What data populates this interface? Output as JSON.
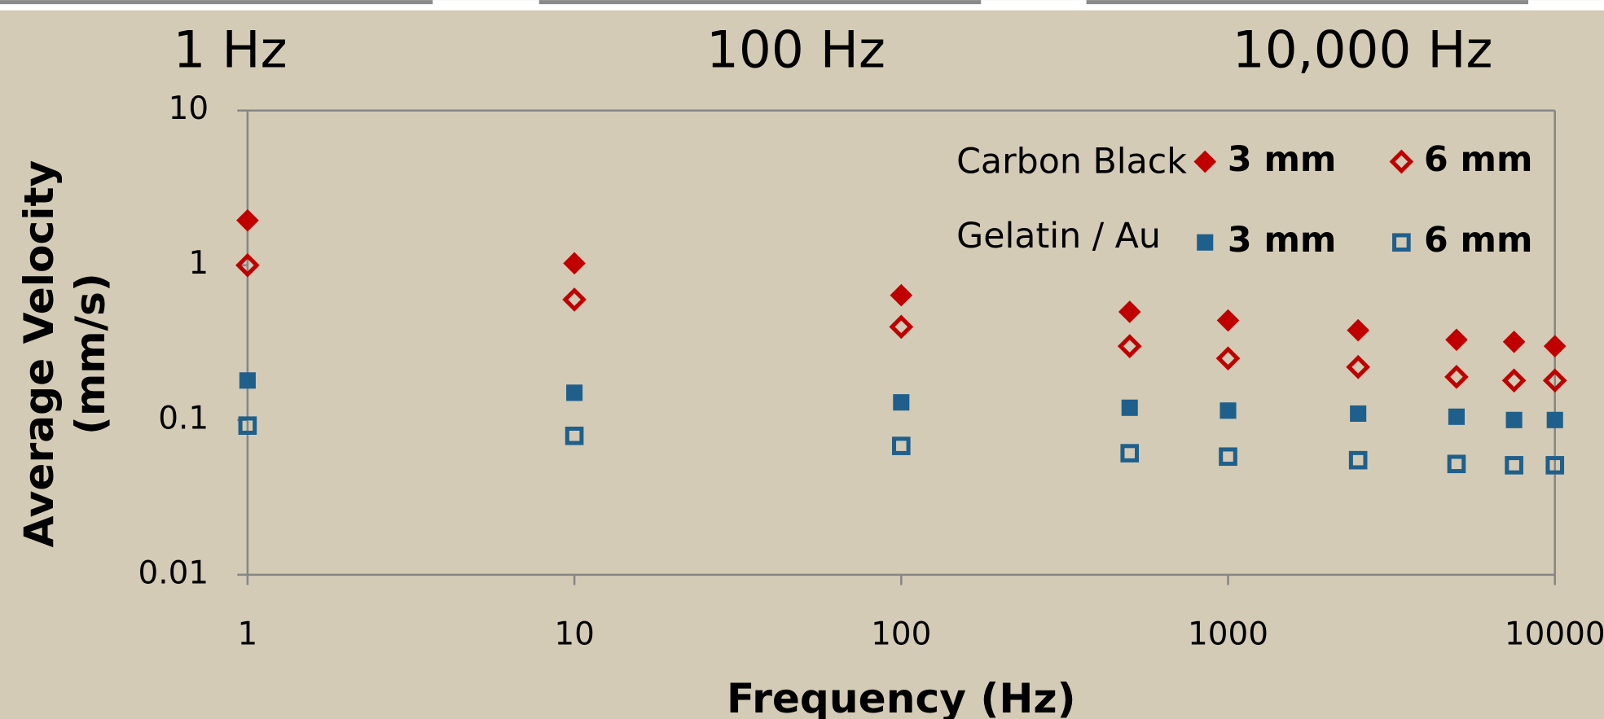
{
  "chart_data": {
    "type": "scatter",
    "annotations": [
      "1 Hz",
      "100 Hz",
      "10,000 Hz"
    ],
    "xlabel": "Frequency (Hz)",
    "ylabel": [
      "Average Velocity",
      "(mm/s)"
    ],
    "xscale": "log",
    "yscale": "log",
    "xlim": [
      1,
      10000
    ],
    "ylim": [
      0.01,
      10
    ],
    "xticks": [
      1,
      10,
      100,
      1000,
      10000
    ],
    "yticks": [
      0.01,
      0.1,
      1,
      10
    ],
    "x": [
      1,
      10,
      100,
      500,
      1000,
      2500,
      5000,
      7500,
      10000
    ],
    "series": [
      {
        "group": "Carbon Black",
        "name": "3 mm",
        "color": "#c00000",
        "marker": "diamond",
        "filled": true,
        "values": [
          1.95,
          1.03,
          0.64,
          0.5,
          0.44,
          0.38,
          0.33,
          0.32,
          0.3
        ]
      },
      {
        "group": "Carbon Black",
        "name": "6 mm",
        "color": "#c00000",
        "marker": "diamond",
        "filled": false,
        "values": [
          1.0,
          0.6,
          0.4,
          0.3,
          0.25,
          0.22,
          0.19,
          0.18,
          0.18
        ]
      },
      {
        "group": "Gelatin / Au",
        "name": "3 mm",
        "color": "#1f5f8b",
        "marker": "square",
        "filled": true,
        "values": [
          0.18,
          0.15,
          0.13,
          0.12,
          0.115,
          0.11,
          0.105,
          0.1,
          0.1
        ]
      },
      {
        "group": "Gelatin / Au",
        "name": "6 mm",
        "color": "#1f5f8b",
        "marker": "square",
        "filled": false,
        "values": [
          0.092,
          0.079,
          0.068,
          0.061,
          0.058,
          0.055,
          0.052,
          0.051,
          0.051
        ]
      }
    ]
  }
}
